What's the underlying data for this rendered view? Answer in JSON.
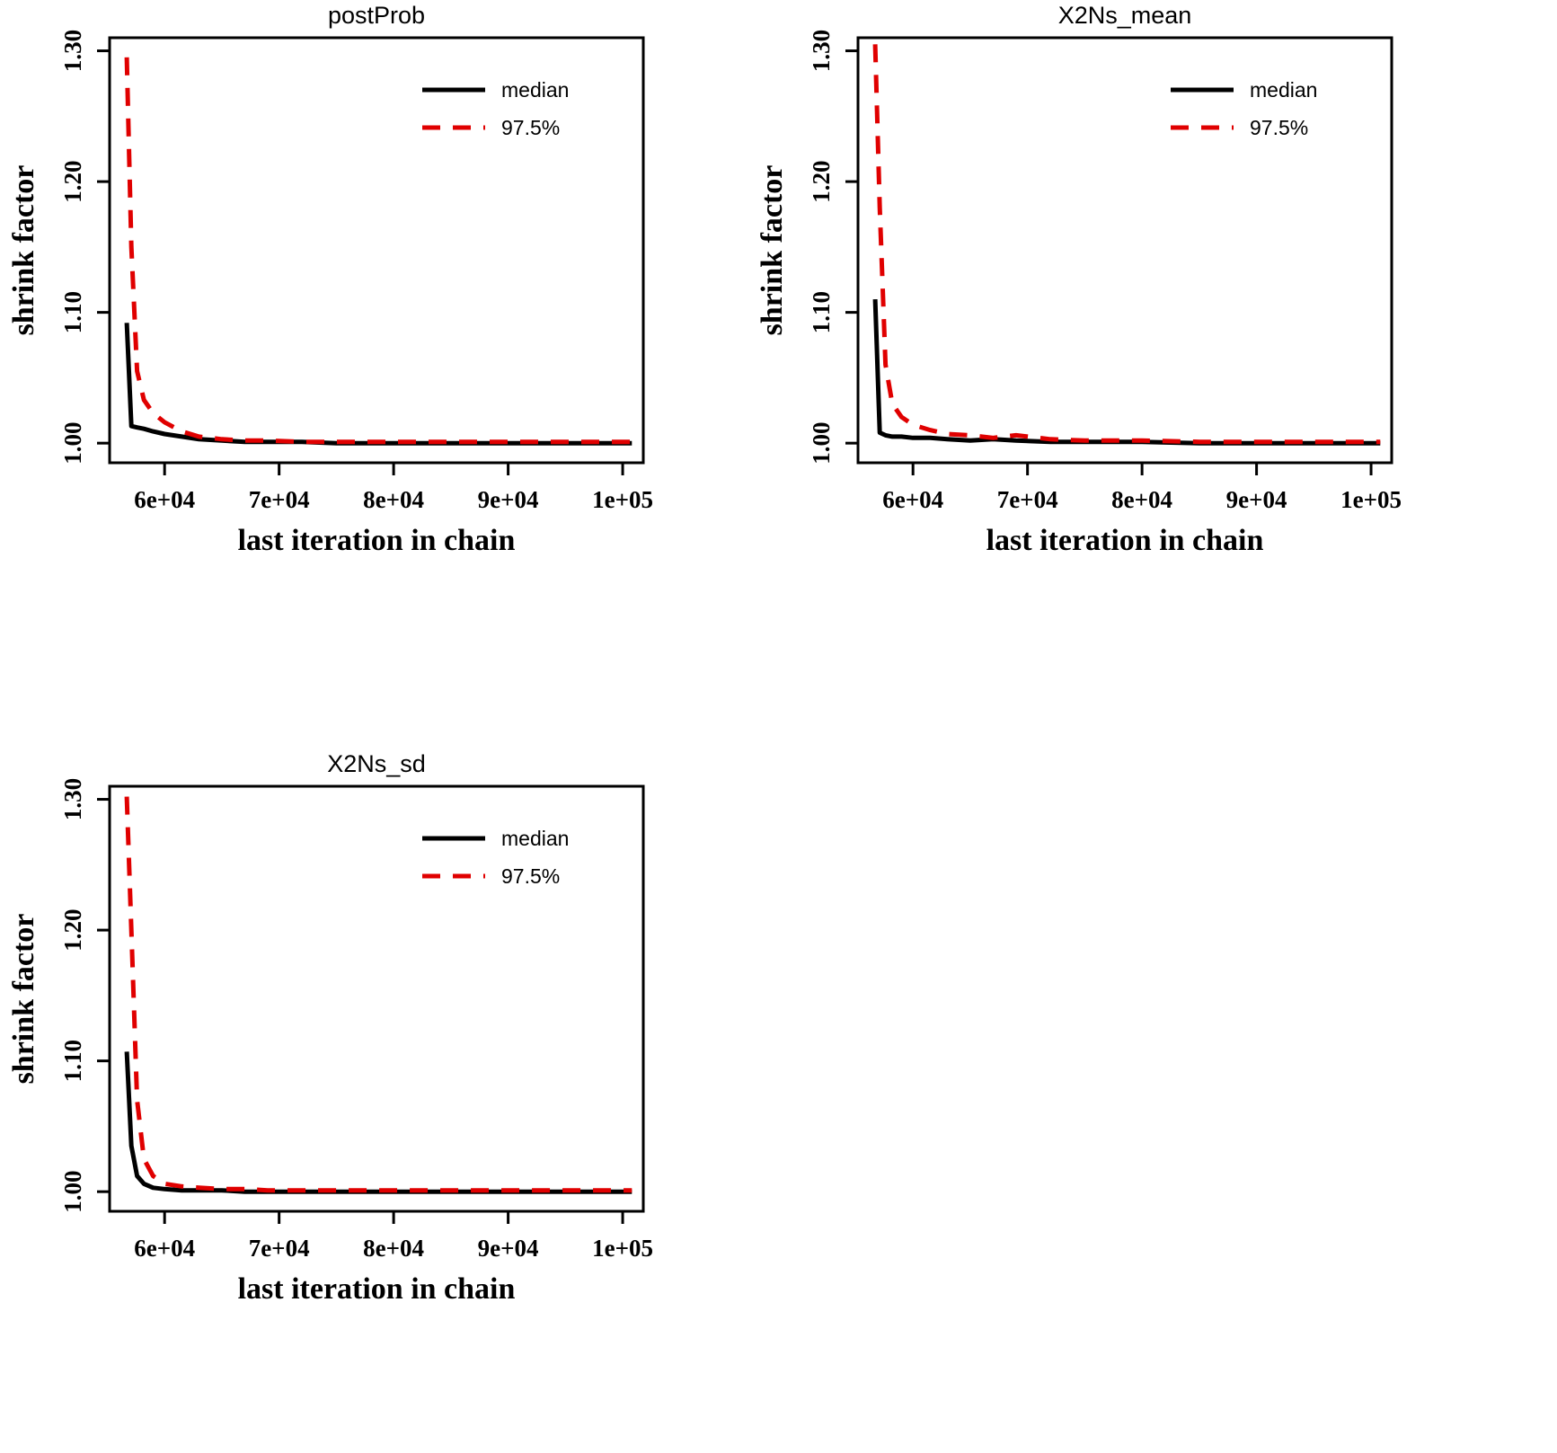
{
  "page": {
    "background": "#ffffff"
  },
  "colors": {
    "median_line": "#000000",
    "upper_line": "#e00000",
    "axis": "#000000"
  },
  "chart_data": [
    {
      "id": "postProb",
      "type": "line",
      "title": "postProb",
      "xlabel": "last iteration in chain",
      "ylabel": "shrink factor",
      "xlim": [
        55200,
        101800
      ],
      "ylim": [
        0.985,
        1.31
      ],
      "xticks": [
        60000,
        70000,
        80000,
        90000,
        100000
      ],
      "xtick_labels": [
        "6e+04",
        "7e+04",
        "8e+04",
        "9e+04",
        "1e+05"
      ],
      "yticks": [
        1.0,
        1.1,
        1.2,
        1.3
      ],
      "ytick_labels": [
        "1.00",
        "1.10",
        "1.20",
        "1.30"
      ],
      "grid": false,
      "legend_position": "top-right",
      "legend": [
        "median",
        "97.5%"
      ],
      "series": [
        {
          "name": "median",
          "color": "#000000",
          "dash": "solid",
          "x": [
            56700,
            57100,
            57600,
            58200,
            59000,
            60000,
            61500,
            63000,
            65000,
            67000,
            69000,
            72000,
            75000,
            80000,
            85000,
            90000,
            95000,
            100800
          ],
          "y": [
            1.092,
            1.013,
            1.012,
            1.011,
            1.009,
            1.007,
            1.005,
            1.003,
            1.002,
            1.001,
            1.001,
            1.001,
            1.0,
            1.0,
            1.0,
            1.0,
            1.0,
            1.0
          ]
        },
        {
          "name": "97.5%",
          "color": "#e00000",
          "dash": "dashed",
          "x": [
            56700,
            57100,
            57600,
            58200,
            59000,
            60000,
            61500,
            63000,
            65000,
            67000,
            69000,
            72000,
            75000,
            80000,
            85000,
            90000,
            95000,
            100800
          ],
          "y": [
            1.295,
            1.15,
            1.055,
            1.033,
            1.023,
            1.016,
            1.009,
            1.005,
            1.003,
            1.002,
            1.002,
            1.001,
            1.001,
            1.001,
            1.001,
            1.001,
            1.001,
            1.001
          ]
        }
      ]
    },
    {
      "id": "X2Ns_mean",
      "type": "line",
      "title": "X2Ns_mean",
      "xlabel": "last iteration in chain",
      "ylabel": "shrink factor",
      "xlim": [
        55200,
        101800
      ],
      "ylim": [
        0.985,
        1.31
      ],
      "xticks": [
        60000,
        70000,
        80000,
        90000,
        100000
      ],
      "xtick_labels": [
        "6e+04",
        "7e+04",
        "8e+04",
        "9e+04",
        "1e+05"
      ],
      "yticks": [
        1.0,
        1.1,
        1.2,
        1.3
      ],
      "ytick_labels": [
        "1.00",
        "1.10",
        "1.20",
        "1.30"
      ],
      "grid": false,
      "legend_position": "top-right",
      "legend": [
        "median",
        "97.5%"
      ],
      "series": [
        {
          "name": "median",
          "color": "#000000",
          "dash": "solid",
          "x": [
            56700,
            57100,
            57600,
            58200,
            59000,
            60000,
            61500,
            63000,
            65000,
            67000,
            69000,
            72000,
            75000,
            80000,
            85000,
            90000,
            95000,
            100800
          ],
          "y": [
            1.11,
            1.008,
            1.006,
            1.005,
            1.005,
            1.004,
            1.004,
            1.003,
            1.002,
            1.003,
            1.002,
            1.001,
            1.001,
            1.001,
            1.0,
            1.0,
            1.0,
            1.0
          ]
        },
        {
          "name": "97.5%",
          "color": "#e00000",
          "dash": "dashed",
          "x": [
            56700,
            57100,
            57600,
            58200,
            59000,
            60000,
            61500,
            63000,
            65000,
            67000,
            69000,
            72000,
            75000,
            80000,
            85000,
            90000,
            95000,
            100800
          ],
          "y": [
            1.305,
            1.18,
            1.06,
            1.03,
            1.02,
            1.014,
            1.01,
            1.007,
            1.006,
            1.004,
            1.006,
            1.003,
            1.002,
            1.002,
            1.001,
            1.001,
            1.001,
            1.001
          ]
        }
      ]
    },
    {
      "id": "X2Ns_sd",
      "type": "line",
      "title": "X2Ns_sd",
      "xlabel": "last iteration in chain",
      "ylabel": "shrink factor",
      "xlim": [
        55200,
        101800
      ],
      "ylim": [
        0.985,
        1.31
      ],
      "xticks": [
        60000,
        70000,
        80000,
        90000,
        100000
      ],
      "xtick_labels": [
        "6e+04",
        "7e+04",
        "8e+04",
        "9e+04",
        "1e+05"
      ],
      "yticks": [
        1.0,
        1.1,
        1.2,
        1.3
      ],
      "ytick_labels": [
        "1.00",
        "1.10",
        "1.20",
        "1.30"
      ],
      "grid": false,
      "legend_position": "top-right",
      "legend": [
        "median",
        "97.5%"
      ],
      "series": [
        {
          "name": "median",
          "color": "#000000",
          "dash": "solid",
          "x": [
            56700,
            57100,
            57600,
            58200,
            59000,
            60000,
            61500,
            63000,
            65000,
            67000,
            69000,
            72000,
            75000,
            80000,
            85000,
            90000,
            95000,
            100800
          ],
          "y": [
            1.107,
            1.035,
            1.012,
            1.006,
            1.003,
            1.002,
            1.001,
            1.001,
            1.001,
            1.0,
            1.0,
            1.0,
            1.0,
            1.0,
            1.0,
            1.0,
            1.0,
            1.0
          ]
        },
        {
          "name": "97.5%",
          "color": "#e00000",
          "dash": "dashed",
          "x": [
            56700,
            57100,
            57600,
            58200,
            59000,
            60000,
            61500,
            63000,
            65000,
            67000,
            69000,
            72000,
            75000,
            80000,
            85000,
            90000,
            95000,
            100800
          ],
          "y": [
            1.302,
            1.2,
            1.07,
            1.025,
            1.012,
            1.006,
            1.004,
            1.003,
            1.002,
            1.002,
            1.001,
            1.001,
            1.001,
            1.001,
            1.001,
            1.001,
            1.001,
            1.001
          ]
        }
      ]
    }
  ]
}
